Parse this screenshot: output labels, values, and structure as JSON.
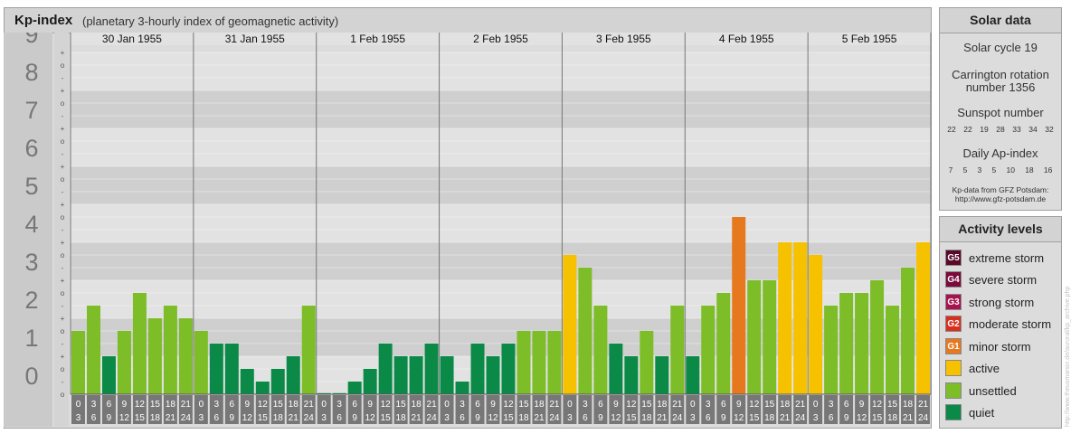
{
  "header": {
    "title": "Kp-index",
    "subtitle": "(planetary 3-hourly index of geomagnetic activity)"
  },
  "solar": {
    "title": "Solar data",
    "cycle": "Solar cycle 19",
    "carrington_line1": "Carrington rotation",
    "carrington_line2": "number 1356",
    "sunspot_label": "Sunspot number",
    "sunspot_values": [
      "22",
      "22",
      "19",
      "28",
      "33",
      "34",
      "32"
    ],
    "ap_label": "Daily Ap-index",
    "ap_values": [
      "7",
      "5",
      "3",
      "5",
      "10",
      "18",
      "16"
    ],
    "source_line1": "Kp-data from GFZ Potsdam:",
    "source_line2": "http://www.gfz-potsdam.de"
  },
  "activity": {
    "title": "Activity levels",
    "levels": [
      {
        "code": "G5",
        "label": "extreme storm",
        "color": "#5a0a28"
      },
      {
        "code": "G4",
        "label": "severe storm",
        "color": "#7a0a3c"
      },
      {
        "code": "G3",
        "label": "strong storm",
        "color": "#a8124e"
      },
      {
        "code": "G2",
        "label": "moderate storm",
        "color": "#d7301f"
      },
      {
        "code": "G1",
        "label": "minor storm",
        "color": "#e6781e"
      },
      {
        "code": "",
        "label": "active",
        "color": "#f6c200"
      },
      {
        "code": "",
        "label": "unsettled",
        "color": "#7cbd28"
      },
      {
        "code": "",
        "label": "quiet",
        "color": "#0a8a46"
      }
    ]
  },
  "chart_data": {
    "type": "bar",
    "ylim": [
      0,
      9
    ],
    "y_major_ticks": [
      "0",
      "1",
      "2",
      "3",
      "4",
      "5",
      "6",
      "7",
      "8",
      "9"
    ],
    "y_minor_ticks": [
      "-",
      "o",
      "+"
    ],
    "days": [
      "30 Jan 1955",
      "31 Jan 1955",
      "1 Feb 1955",
      "2 Feb 1955",
      "3 Feb 1955",
      "4 Feb 1955",
      "5 Feb 1955"
    ],
    "interval_top": [
      "0",
      "3",
      "6",
      "9",
      "12",
      "15",
      "18",
      "21"
    ],
    "interval_bottom": [
      "3",
      "6",
      "9",
      "12",
      "15",
      "18",
      "21",
      "24"
    ],
    "values": [
      [
        1.667,
        2.333,
        1.0,
        1.667,
        2.667,
        2.0,
        2.333,
        2.0
      ],
      [
        1.667,
        1.333,
        1.333,
        0.667,
        0.333,
        0.667,
        1.0,
        2.333
      ],
      [
        0.0,
        0.0,
        0.333,
        0.667,
        1.333,
        1.0,
        1.0,
        1.333
      ],
      [
        1.0,
        0.333,
        1.333,
        1.0,
        1.333,
        1.667,
        1.667,
        1.667
      ],
      [
        3.667,
        3.333,
        2.333,
        1.333,
        1.0,
        1.667,
        1.0,
        2.333
      ],
      [
        1.0,
        2.333,
        2.667,
        4.667,
        3.0,
        3.0,
        4.0,
        4.0
      ],
      [
        3.667,
        2.333,
        2.667,
        2.667,
        3.0,
        2.333,
        3.333,
        4.0
      ]
    ]
  },
  "watermark": "http://www.theusmarsin.de/auroral/kp_archive.php"
}
